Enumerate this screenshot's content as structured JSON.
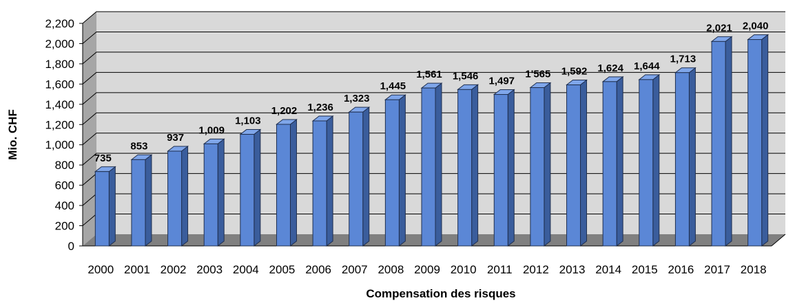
{
  "chart_data": {
    "type": "bar",
    "categories": [
      "2000",
      "2001",
      "2002",
      "2003",
      "2004",
      "2005",
      "2006",
      "2007",
      "2008",
      "2009",
      "2010",
      "2011",
      "2012",
      "2013",
      "2014",
      "2015",
      "2016",
      "2017",
      "2018"
    ],
    "values": [
      735,
      853,
      937,
      1009,
      1103,
      1202,
      1236,
      1323,
      1445,
      1561,
      1546,
      1497,
      1565,
      1592,
      1624,
      1644,
      1713,
      2021,
      2040
    ],
    "data_labels": [
      "735",
      "853",
      "937",
      "1,009",
      "1,103",
      "1,202",
      "1,236",
      "1,323",
      "1,445",
      "1,561",
      "1,546",
      "1,497",
      "1'565",
      "1,592",
      "1,624",
      "1,644",
      "1,713",
      "2,021",
      "2,040"
    ],
    "xlabel": "Compensation des risques",
    "ylabel": "Mio. CHF",
    "ylim": [
      0,
      2200
    ],
    "yticks": [
      "0",
      "200",
      "400",
      "600",
      "800",
      "1,000",
      "1,200",
      "1,400",
      "1,600",
      "1,800",
      "2,000",
      "2,200"
    ],
    "grid": true,
    "style": "3d-column",
    "colors": {
      "bar_front": "#5B87D6",
      "bar_side": "#3A5D9C",
      "bar_top": "#7FA6EA",
      "wall": "#D9D9D9",
      "floor": "#808080",
      "gridline": "#000000"
    }
  }
}
